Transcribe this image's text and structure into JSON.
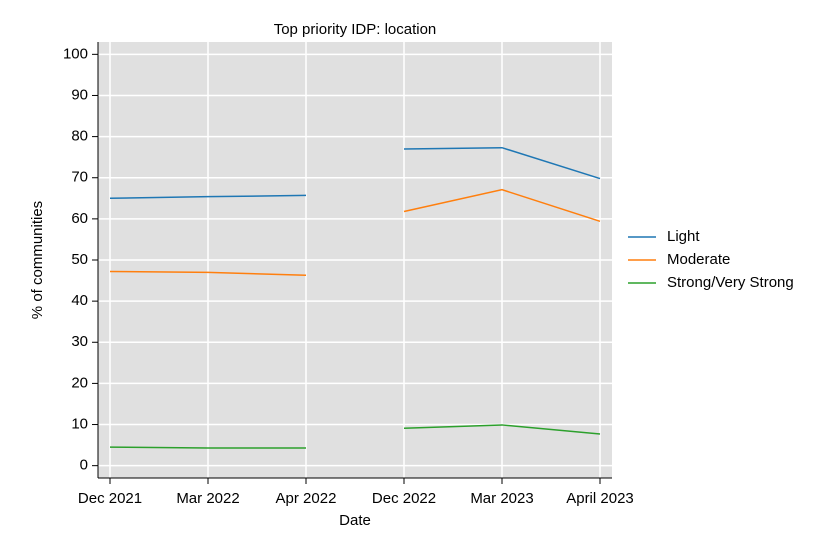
{
  "chart_data": {
    "type": "line",
    "title": "Top priority IDP: location",
    "xlabel": "Date",
    "ylabel": "% of communities",
    "categories": [
      "Dec 2021",
      "Mar 2022",
      "Apr 2022",
      "Dec 2022",
      "Mar 2023",
      "April 2023"
    ],
    "breaks": [
      2
    ],
    "series": [
      {
        "name": "Light",
        "color": "#1f77b4",
        "values": [
          65.0,
          65.4,
          65.7,
          77.0,
          77.3,
          69.8
        ]
      },
      {
        "name": "Moderate",
        "color": "#ff7f0e",
        "values": [
          47.2,
          47.0,
          46.3,
          61.8,
          67.1,
          59.4
        ]
      },
      {
        "name": "Strong/Very Strong",
        "color": "#2ca02c",
        "values": [
          4.5,
          4.3,
          4.3,
          9.1,
          9.9,
          7.7
        ]
      }
    ],
    "ylim": [
      -3,
      103
    ],
    "yticks": [
      0,
      10,
      20,
      30,
      40,
      50,
      60,
      70,
      80,
      90,
      100
    ],
    "grid": true,
    "legend": "right"
  }
}
